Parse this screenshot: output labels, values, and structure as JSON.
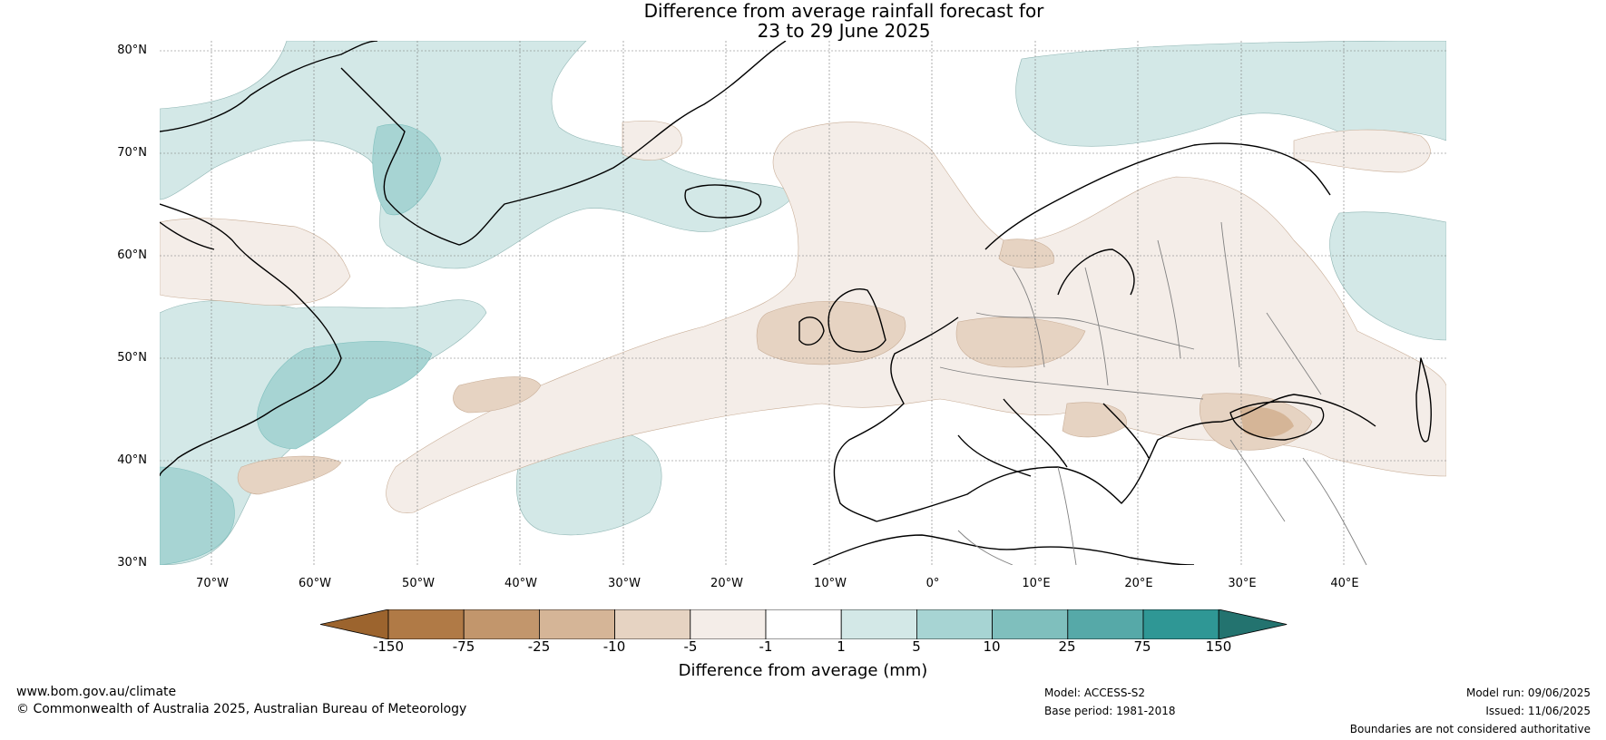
{
  "title_line1": "Difference from average rainfall forecast for",
  "title_line2": "23 to 29 June 2025",
  "lat_labels": [
    "80°N",
    "70°N",
    "60°N",
    "50°N",
    "40°N",
    "30°N"
  ],
  "lon_labels": [
    "70°W",
    "60°W",
    "50°W",
    "40°W",
    "30°W",
    "20°W",
    "10°W",
    "0°",
    "10°E",
    "20°E",
    "30°E",
    "40°E"
  ],
  "colorbar": {
    "ticks": [
      "-150",
      "-75",
      "-25",
      "-10",
      "-5",
      "-1",
      "1",
      "5",
      "10",
      "25",
      "75",
      "150"
    ],
    "colors": [
      "#9c642e",
      "#b07a46",
      "#c2966c",
      "#d5b597",
      "#e6d3c2",
      "#f4ede8",
      "#ffffff",
      "#d3e8e7",
      "#a7d4d3",
      "#7fbfbd",
      "#56a9a8",
      "#2f9795",
      "#23736f"
    ],
    "label": "Difference from average (mm)"
  },
  "footer": {
    "url": "www.bom.gov.au/climate",
    "copyright": "© Commonwealth of Australia 2025, Australian Bureau of Meteorology",
    "model": "Model: ACCESS-S2",
    "base_period": "Base period: 1981-2018",
    "model_run": "Model run: 09/06/2025",
    "issued": "Issued: 11/06/2025",
    "disclaimer": "Boundaries are not considered authoritative"
  }
}
